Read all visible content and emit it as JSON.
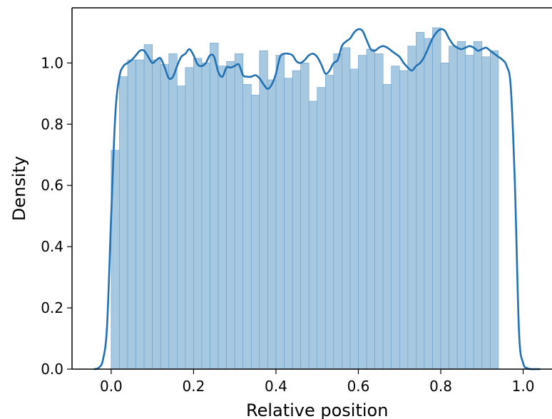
{
  "chart_data": {
    "type": "histogram",
    "xlabel": "Relative position",
    "ylabel": "Density",
    "xlim": [
      -0.095,
      1.07
    ],
    "ylim": [
      0.0,
      1.18
    ],
    "xticks": [
      0.0,
      0.2,
      0.4,
      0.6,
      0.8,
      1.0
    ],
    "xtick_labels": [
      "0.0",
      "0.2",
      "0.4",
      "0.6",
      "0.8",
      "1.0"
    ],
    "yticks": [
      0.0,
      0.2,
      0.4,
      0.6,
      0.8,
      1.0
    ],
    "ytick_labels": [
      "0.0",
      "0.2",
      "0.4",
      "0.6",
      "0.8",
      "1.0"
    ],
    "grid": false,
    "legend": "none",
    "colors": {
      "bars": "#a6c8e0",
      "bar_edge": "#6a9fcb",
      "kde": "#2271b3",
      "axis": "#000000"
    },
    "bins": {
      "start": 0.0,
      "width": 0.02,
      "densities": [
        0.715,
        0.955,
        1.01,
        1.01,
        1.06,
        1.01,
        0.995,
        1.03,
        0.925,
        0.985,
        1.015,
        1.0,
        1.065,
        0.99,
        1.005,
        1.03,
        0.93,
        0.895,
        1.04,
        0.945,
        1.025,
        0.95,
        0.975,
        1.0,
        0.875,
        0.92,
        0.96,
        1.03,
        1.05,
        0.98,
        1.025,
        1.045,
        1.03,
        0.93,
        0.99,
        0.975,
        1.055,
        1.1,
        1.08,
        1.115,
        1.0,
        1.055,
        1.07,
        1.025,
        1.07,
        1.02,
        1.04
      ]
    },
    "kde": {
      "x": [
        -0.04,
        -0.03,
        -0.02,
        -0.01,
        0.0,
        0.01,
        0.02,
        0.03,
        0.04,
        0.05,
        0.06,
        0.07,
        0.08,
        0.09,
        0.1,
        0.11,
        0.12,
        0.13,
        0.14,
        0.15,
        0.16,
        0.17,
        0.18,
        0.19,
        0.2,
        0.21,
        0.22,
        0.23,
        0.24,
        0.25,
        0.26,
        0.27,
        0.28,
        0.29,
        0.3,
        0.31,
        0.32,
        0.33,
        0.34,
        0.35,
        0.36,
        0.37,
        0.38,
        0.39,
        0.4,
        0.41,
        0.42,
        0.43,
        0.44,
        0.45,
        0.46,
        0.47,
        0.48,
        0.49,
        0.5,
        0.51,
        0.52,
        0.53,
        0.54,
        0.55,
        0.56,
        0.57,
        0.58,
        0.59,
        0.6,
        0.61,
        0.62,
        0.63,
        0.64,
        0.65,
        0.66,
        0.67,
        0.68,
        0.69,
        0.7,
        0.71,
        0.72,
        0.73,
        0.74,
        0.75,
        0.76,
        0.77,
        0.78,
        0.79,
        0.8,
        0.81,
        0.82,
        0.83,
        0.84,
        0.85,
        0.86,
        0.87,
        0.88,
        0.89,
        0.9,
        0.91,
        0.92,
        0.93,
        0.94,
        0.95,
        0.96,
        0.97,
        0.98,
        0.99,
        1.0,
        1.01,
        1.02,
        1.03,
        1.04
      ],
      "y": [
        0.0,
        0.005,
        0.03,
        0.14,
        0.5,
        0.83,
        0.955,
        0.99,
        1.0,
        1.01,
        1.025,
        1.04,
        1.04,
        1.02,
        1.0,
        1.01,
        1.015,
        0.985,
        0.95,
        0.955,
        0.99,
        1.02,
        1.03,
        1.045,
        1.025,
        0.995,
        0.99,
        1.0,
        1.025,
        1.02,
        0.97,
        0.955,
        0.985,
        0.985,
        0.99,
        0.995,
        0.96,
        0.955,
        0.955,
        0.96,
        0.95,
        0.93,
        0.915,
        0.93,
        0.965,
        1.02,
        1.03,
        1.03,
        1.025,
        1.005,
        1.0,
        1.01,
        1.025,
        1.03,
        1.02,
        0.995,
        0.965,
        0.975,
        1.0,
        1.01,
        1.055,
        1.07,
        1.08,
        1.1,
        1.11,
        1.105,
        1.075,
        1.045,
        1.04,
        1.05,
        1.055,
        1.05,
        1.04,
        1.03,
        1.02,
        1.0,
        0.985,
        0.975,
        0.99,
        1.0,
        1.02,
        1.05,
        1.08,
        1.1,
        1.11,
        1.105,
        1.08,
        1.06,
        1.05,
        1.045,
        1.05,
        1.055,
        1.05,
        1.04,
        1.045,
        1.05,
        1.04,
        1.03,
        1.02,
        1.01,
        0.99,
        0.92,
        0.6,
        0.12,
        0.02,
        0.003,
        0.0,
        0.0,
        0.0
      ]
    }
  }
}
